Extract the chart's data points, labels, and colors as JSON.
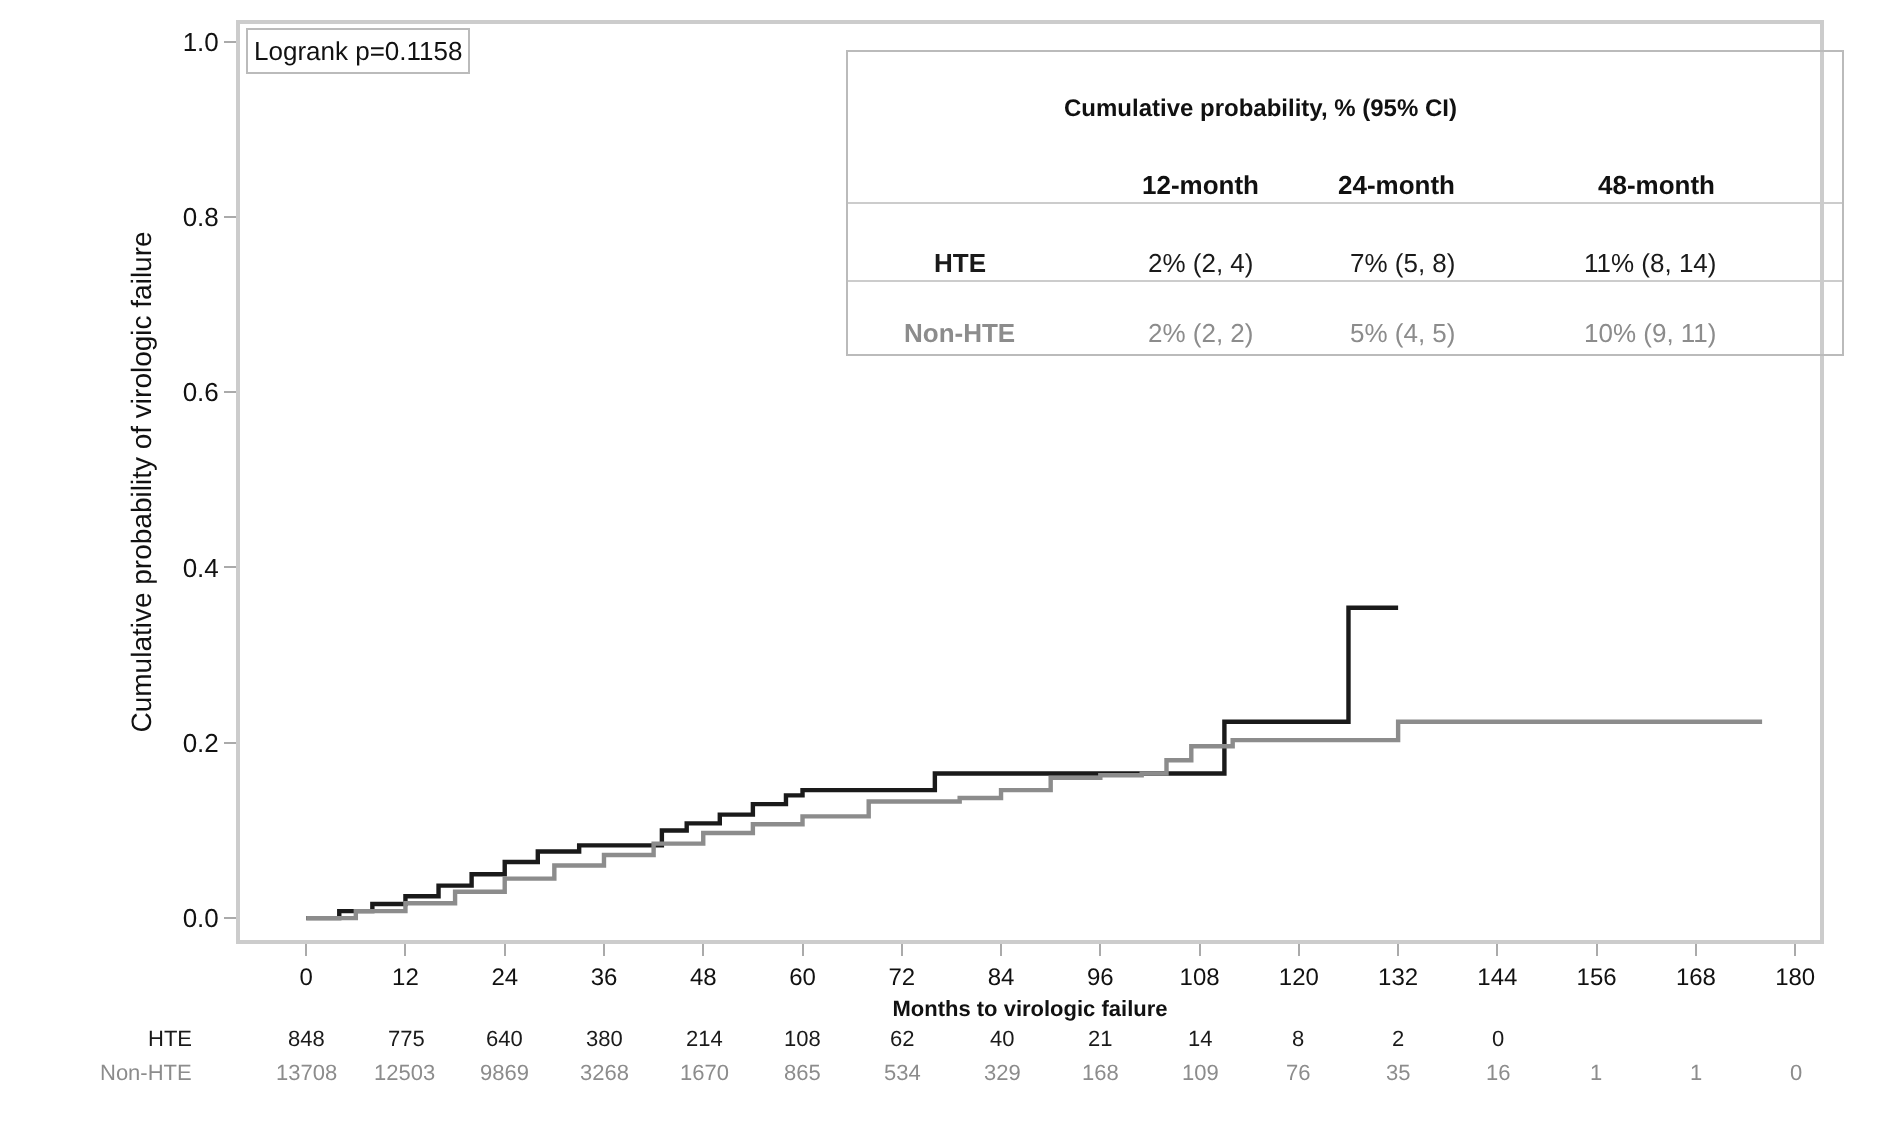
{
  "chart_data": {
    "type": "step",
    "xlabel": "Months to virologic failure",
    "ylabel": "Cumulative probability of virologic failure",
    "xlim": [
      -8,
      183
    ],
    "ylim": [
      -0.025,
      1.02
    ],
    "xticks": [
      0,
      12,
      24,
      36,
      48,
      60,
      72,
      84,
      96,
      108,
      120,
      132,
      144,
      156,
      168,
      180
    ],
    "yticks": [
      {
        "value": 0,
        "label": "0.0"
      },
      {
        "value": 0.2,
        "label": "0.2"
      },
      {
        "value": 0.4,
        "label": "0.4"
      },
      {
        "value": 0.6,
        "label": "0.6"
      },
      {
        "value": 0.8,
        "label": "0.8"
      },
      {
        "value": 1,
        "label": "1.0"
      }
    ],
    "grid": false,
    "legend": false,
    "marker": "none",
    "line_style": "solid",
    "series": [
      {
        "name": "HTE",
        "color": "#1a1a1a",
        "x": [
          0,
          4,
          8,
          12,
          16,
          20,
          24,
          28,
          33,
          43,
          46,
          50,
          54,
          58,
          60,
          76,
          111,
          126,
          132
        ],
        "values": [
          0,
          0.008,
          0.016,
          0.025,
          0.037,
          0.05,
          0.064,
          0.076,
          0.083,
          0.1,
          0.108,
          0.118,
          0.13,
          0.14,
          0.146,
          0.165,
          0.224,
          0.354,
          0.354
        ]
      },
      {
        "name": "Non-HTE",
        "color": "#8c8c8c",
        "x": [
          0,
          6,
          12,
          18,
          24,
          30,
          36,
          42,
          48,
          54,
          60,
          68,
          79,
          84,
          90,
          96,
          101,
          104,
          107,
          112,
          132,
          176
        ],
        "values": [
          0,
          0.008,
          0.017,
          0.03,
          0.045,
          0.06,
          0.072,
          0.085,
          0.097,
          0.107,
          0.116,
          0.133,
          0.137,
          0.146,
          0.16,
          0.163,
          0.165,
          0.18,
          0.196,
          0.203,
          0.224,
          0.224
        ]
      }
    ],
    "annotations": [
      "Logrank p=0.1158",
      "Cumulative probability, % (95% CI)",
      "12-month",
      "24-month",
      "48-month",
      "2% (2, 4)",
      "7% (5, 8)",
      "11% (8, 14)",
      "2% (2, 2)",
      "5% (4, 5)",
      "10% (9, 11)",
      "848",
      "775",
      "640",
      "380",
      "214",
      "108",
      "62",
      "40",
      "21",
      "14",
      "8",
      "2",
      "0",
      "13708",
      "12503",
      "9869",
      "3268",
      "1670",
      "865",
      "534",
      "329",
      "168",
      "109",
      "76",
      "35",
      "16",
      "1",
      "1",
      "0"
    ]
  }
}
